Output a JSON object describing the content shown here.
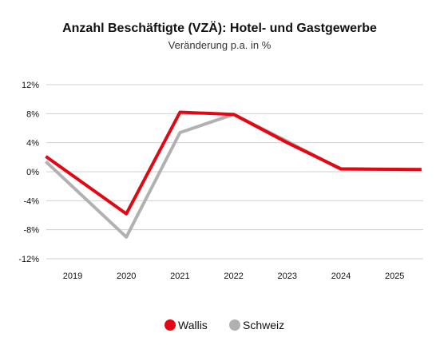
{
  "chart_data": {
    "type": "line",
    "title": "Anzahl Beschäftigte (VZÄ): Hotel- und Gastgewerbe",
    "subtitle": "Veränderung p.a. in %",
    "xlabel": "",
    "ylabel": "",
    "categories": [
      "2019",
      "2020",
      "2021",
      "2022",
      "2023",
      "2024",
      "2025"
    ],
    "ylim": [
      -12,
      12
    ],
    "yticks": [
      12,
      8,
      4,
      0,
      -4,
      -8,
      -12
    ],
    "ytick_labels": [
      "12%",
      "8%",
      "4%",
      "0%",
      "-4%",
      "-8%",
      "-12%"
    ],
    "grid": true,
    "legend_position": "bottom",
    "series": [
      {
        "name": "Wallis",
        "color": "#e30613",
        "x": [
          2018.5,
          2020,
          2021,
          2022,
          2023,
          2024,
          2025.5
        ],
        "values": [
          2.1,
          -5.8,
          8.2,
          7.9,
          4.0,
          0.4,
          0.3
        ]
      },
      {
        "name": "Schweiz",
        "color": "#b1b1b1",
        "x": [
          2018.5,
          2020,
          2021,
          2022,
          2023,
          2024,
          2025.5
        ],
        "values": [
          1.4,
          -9.0,
          5.4,
          7.9,
          4.2,
          0.3,
          0.3
        ]
      }
    ]
  }
}
